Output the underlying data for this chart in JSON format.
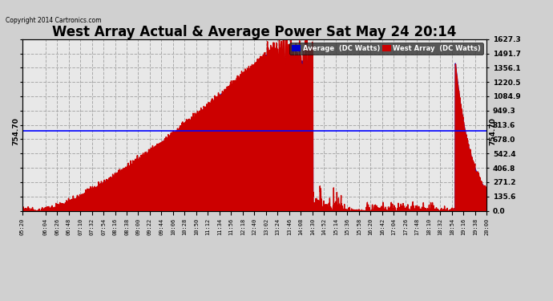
{
  "title": "West Array Actual & Average Power Sat May 24 20:14",
  "copyright": "Copyright 2014 Cartronics.com",
  "y_max": 1627.3,
  "y_min": 0.0,
  "y_ticks": [
    0.0,
    135.6,
    271.2,
    406.8,
    542.4,
    678.0,
    813.6,
    949.3,
    1084.9,
    1220.5,
    1356.1,
    1491.7,
    1627.3
  ],
  "hline_value": 754.7,
  "hline_label": "754.70",
  "hline_color": "#0000ff",
  "legend_entries": [
    {
      "label": "Average  (DC Watts)",
      "color": "#0000cc"
    },
    {
      "label": "West Array  (DC Watts)",
      "color": "#cc0000"
    }
  ],
  "background_color": "#d0d0d0",
  "plot_bg_color": "#e8e8e8",
  "grid_color": "#aaaaaa",
  "title_fontsize": 12,
  "time_labels": [
    "05:20",
    "06:04",
    "06:26",
    "06:48",
    "07:10",
    "07:32",
    "07:54",
    "08:16",
    "08:38",
    "09:00",
    "09:22",
    "09:44",
    "10:06",
    "10:28",
    "10:50",
    "11:12",
    "11:34",
    "11:56",
    "12:18",
    "12:40",
    "13:02",
    "13:24",
    "13:46",
    "14:08",
    "14:30",
    "14:52",
    "15:14",
    "15:36",
    "15:58",
    "16:20",
    "16:42",
    "17:04",
    "17:26",
    "17:48",
    "18:10",
    "18:32",
    "18:54",
    "19:16",
    "19:38",
    "20:00"
  ]
}
